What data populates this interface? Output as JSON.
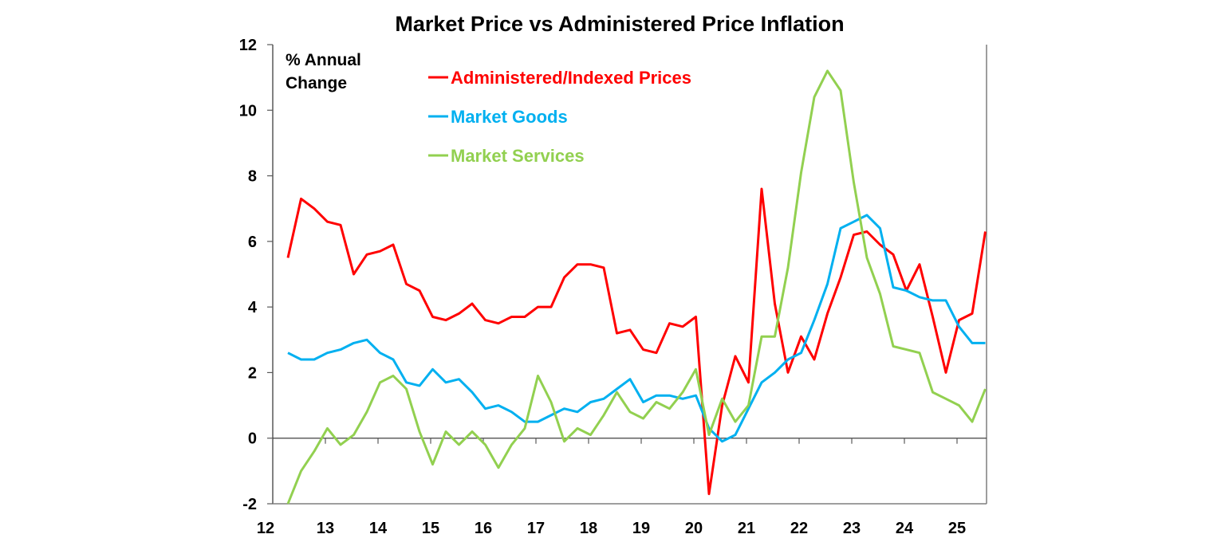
{
  "chart_data": {
    "type": "line",
    "title": "Market Price vs Administered Price Inflation",
    "ylabel": "% Annual Change",
    "ylabel_lines": [
      "% Annual",
      "Change"
    ],
    "xlabel": "",
    "ylim": [
      -2,
      12
    ],
    "yticks": [
      -2,
      0,
      2,
      4,
      6,
      8,
      10,
      12
    ],
    "xticks": [
      "12",
      "13",
      "14",
      "15",
      "16",
      "17",
      "18",
      "19",
      "20",
      "21",
      "22",
      "23",
      "24",
      "25"
    ],
    "grid": false,
    "legend_placement": "top-left",
    "x": [
      "2012-06",
      "2012-09",
      "2012-12",
      "2013-03",
      "2013-06",
      "2013-09",
      "2013-12",
      "2014-03",
      "2014-06",
      "2014-09",
      "2014-12",
      "2015-03",
      "2015-06",
      "2015-09",
      "2015-12",
      "2016-03",
      "2016-06",
      "2016-09",
      "2016-12",
      "2017-03",
      "2017-06",
      "2017-09",
      "2017-12",
      "2018-03",
      "2018-06",
      "2018-09",
      "2018-12",
      "2019-03",
      "2019-06",
      "2019-09",
      "2019-12",
      "2020-03",
      "2020-06",
      "2020-09",
      "2020-12",
      "2021-03",
      "2021-06",
      "2021-09",
      "2021-12",
      "2022-03",
      "2022-06",
      "2022-09",
      "2022-12",
      "2023-03",
      "2023-06",
      "2023-09",
      "2023-12",
      "2024-03",
      "2024-06",
      "2024-09",
      "2024-12",
      "2025-03",
      "2025-06",
      "2025-09"
    ],
    "series": [
      {
        "name": "Administered/Indexed Prices",
        "color": "#ff0000",
        "values": [
          5.5,
          7.3,
          7.0,
          6.6,
          6.5,
          5.0,
          5.6,
          5.7,
          5.9,
          4.7,
          4.5,
          3.7,
          3.6,
          3.8,
          4.1,
          3.6,
          3.5,
          3.7,
          3.7,
          4.0,
          4.0,
          4.9,
          5.3,
          5.3,
          5.2,
          3.2,
          3.3,
          2.7,
          2.6,
          3.5,
          3.4,
          3.7,
          -1.7,
          1.0,
          2.5,
          1.7,
          7.6,
          4.1,
          2.0,
          3.1,
          2.4,
          3.8,
          4.9,
          6.2,
          6.3,
          5.9,
          5.6,
          4.5,
          5.3,
          3.7,
          2.0,
          3.6,
          3.8,
          6.3
        ]
      },
      {
        "name": "Market Goods",
        "color": "#00b0f0",
        "values": [
          2.6,
          2.4,
          2.4,
          2.6,
          2.7,
          2.9,
          3.0,
          2.6,
          2.4,
          1.7,
          1.6,
          2.1,
          1.7,
          1.8,
          1.4,
          0.9,
          1.0,
          0.8,
          0.5,
          0.5,
          0.7,
          0.9,
          0.8,
          1.1,
          1.2,
          1.5,
          1.8,
          1.1,
          1.3,
          1.3,
          1.2,
          1.3,
          0.3,
          -0.1,
          0.1,
          0.9,
          1.7,
          2.0,
          2.4,
          2.6,
          3.6,
          4.7,
          6.4,
          6.6,
          6.8,
          6.4,
          4.6,
          4.5,
          4.3,
          4.2,
          4.2,
          3.4,
          2.9,
          2.9
        ]
      },
      {
        "name": "Market Services",
        "color": "#92d050",
        "values": [
          -2.0,
          -1.0,
          -0.4,
          0.3,
          -0.2,
          0.1,
          0.8,
          1.7,
          1.9,
          1.5,
          0.2,
          -0.8,
          0.2,
          -0.2,
          0.2,
          -0.2,
          -0.9,
          -0.2,
          0.3,
          1.9,
          1.1,
          -0.1,
          0.3,
          0.1,
          0.7,
          1.4,
          0.8,
          0.6,
          1.1,
          0.9,
          1.4,
          2.1,
          0.1,
          1.2,
          0.5,
          1.0,
          3.1,
          3.1,
          5.2,
          8.1,
          10.4,
          11.2,
          10.6,
          7.8,
          5.5,
          4.4,
          2.8,
          2.7,
          2.6,
          1.4,
          1.2,
          1.0,
          0.5,
          1.5
        ]
      }
    ]
  }
}
